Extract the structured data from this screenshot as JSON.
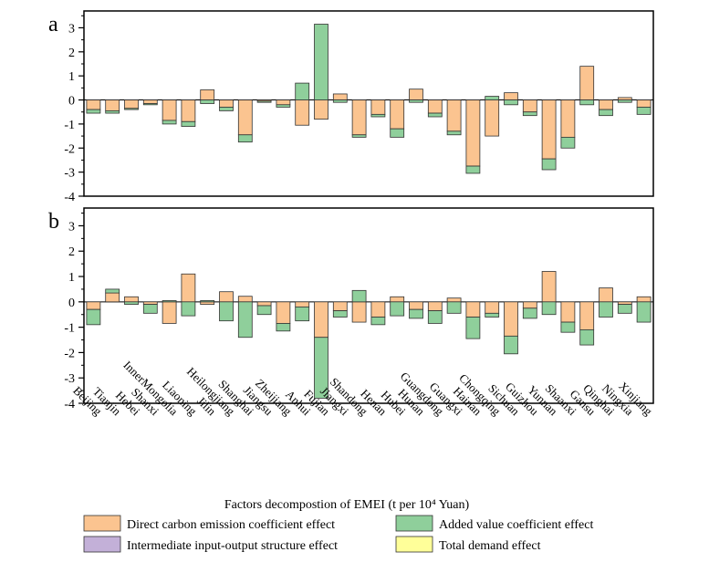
{
  "chart_data": {
    "type": "bar",
    "stacked": true,
    "xlabel": "Factors decompostion of EMEI (t per 10⁴ Yuan)",
    "categories": [
      "Beijing",
      "Tianjin",
      "Hebei",
      "Shanxi",
      "InnerMongolia",
      "Liaoning",
      "Jilin",
      "Heilongjiang",
      "Shanghai",
      "Jiangsu",
      "Zheijiang",
      "Anhui",
      "Fujian",
      "Jiangxi",
      "Shandong",
      "Henan",
      "Hubei",
      "Hunan",
      "Guangdong",
      "Guangxi",
      "Hainan",
      "Chongqing",
      "Sichuan",
      "Guizhou",
      "Yunnan",
      "Shaanxi",
      "Gansu",
      "Qinghai",
      "Ningxia",
      "Xinjiang"
    ],
    "legend": [
      {
        "name": "Direct carbon emission coefficient effect",
        "color": "#fbc490"
      },
      {
        "name": "Added value coefficient effect",
        "color": "#8fcf9b"
      },
      {
        "name": "Intermediate input-output structure effect",
        "color": "#c3b0d8"
      },
      {
        "name": "Total demand effect",
        "color": "#ffff99"
      }
    ],
    "panels": [
      {
        "label": "a",
        "ylim": [
          -4,
          3.7
        ],
        "yticks": [
          -4,
          -3,
          -2,
          -1,
          0,
          1,
          2,
          3
        ],
        "series": [
          {
            "name": "Direct carbon emission coefficient effect",
            "values": [
              -0.4,
              -0.45,
              -0.35,
              -0.15,
              -0.85,
              -0.9,
              0.42,
              -0.3,
              -1.45,
              -0.05,
              -0.2,
              -1.05,
              -0.8,
              0.25,
              -1.45,
              -0.6,
              -1.2,
              0.45,
              -0.55,
              -1.3,
              -2.75,
              -1.5,
              0.3,
              -0.5,
              -2.45,
              -1.55,
              1.4,
              -0.4,
              0.1,
              -0.3
            ]
          },
          {
            "name": "Added value coefficient effect",
            "values": [
              -0.15,
              -0.1,
              -0.05,
              -0.05,
              -0.15,
              -0.2,
              -0.15,
              -0.15,
              -0.3,
              -0.05,
              -0.1,
              0.7,
              3.15,
              -0.1,
              -0.1,
              -0.1,
              -0.35,
              -0.1,
              -0.15,
              -0.15,
              -0.3,
              0.15,
              -0.2,
              -0.15,
              -0.45,
              -0.45,
              -0.2,
              -0.25,
              -0.1,
              -0.3
            ]
          }
        ]
      },
      {
        "label": "b",
        "ylim": [
          -4,
          3.7
        ],
        "yticks": [
          -4,
          -3,
          -2,
          -1,
          0,
          1,
          2,
          3
        ],
        "series": [
          {
            "name": "Direct carbon emission coefficient effect",
            "values": [
              -0.3,
              0.35,
              0.2,
              -0.1,
              -0.85,
              1.1,
              -0.1,
              0.4,
              0.22,
              -0.15,
              -0.85,
              -0.2,
              -1.4,
              -0.35,
              -0.8,
              -0.6,
              0.2,
              -0.3,
              -0.35,
              0.15,
              -0.6,
              -0.45,
              -1.35,
              -0.25,
              1.2,
              -0.8,
              -1.1,
              0.55,
              -0.1,
              0.2
            ]
          },
          {
            "name": "Added value coefficient effect",
            "values": [
              -0.6,
              0.15,
              -0.1,
              -0.35,
              0.05,
              -0.55,
              0.05,
              -0.75,
              -1.4,
              -0.35,
              -0.3,
              -0.55,
              -2.4,
              -0.25,
              0.45,
              -0.3,
              -0.55,
              -0.35,
              -0.5,
              -0.45,
              -0.85,
              -0.15,
              -0.7,
              -0.4,
              -0.5,
              -0.4,
              -0.6,
              -0.6,
              -0.35,
              -0.8
            ]
          }
        ]
      }
    ]
  }
}
